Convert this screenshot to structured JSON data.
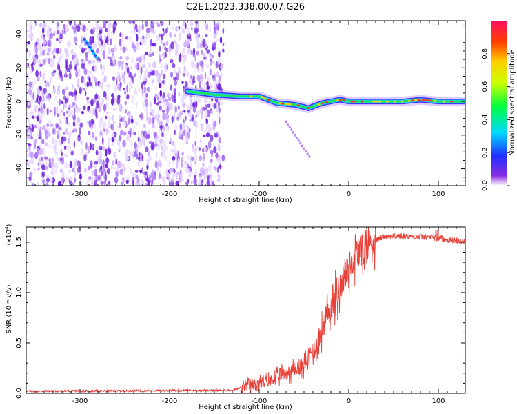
{
  "title": "C2E1.2023.338.00.07.G26",
  "chart_data": [
    {
      "type": "heatmap",
      "name": "spectrogram",
      "xlabel": "Height of straight line (km)",
      "ylabel": "Frequency (Hz)",
      "xlim": [
        -360,
        130
      ],
      "ylim": [
        -50,
        48
      ],
      "xticks": [
        -300,
        -200,
        -100,
        0,
        100
      ],
      "yticks": [
        -40,
        -20,
        0,
        20,
        40
      ],
      "colorbar": {
        "label": "Normalized spectral amplitude",
        "range": [
          0,
          1
        ],
        "ticks": [
          0.0,
          0.2,
          0.4,
          0.6,
          0.8
        ]
      },
      "noise_region_x": [
        -360,
        -140
      ],
      "ridge": [
        {
          "x": -180,
          "y": 6
        },
        {
          "x": -150,
          "y": 4
        },
        {
          "x": -120,
          "y": 3
        },
        {
          "x": -100,
          "y": 3
        },
        {
          "x": -80,
          "y": -1
        },
        {
          "x": -60,
          "y": -2
        },
        {
          "x": -45,
          "y": -4
        },
        {
          "x": -30,
          "y": -1
        },
        {
          "x": -10,
          "y": 1
        },
        {
          "x": 0,
          "y": 0
        },
        {
          "x": 20,
          "y": 0
        },
        {
          "x": 40,
          "y": 0
        },
        {
          "x": 60,
          "y": 0
        },
        {
          "x": 80,
          "y": 1
        },
        {
          "x": 100,
          "y": 0
        },
        {
          "x": 130,
          "y": 0
        }
      ]
    },
    {
      "type": "line",
      "name": "snr",
      "xlabel": "Height of straight line (km)",
      "ylabel": "SNR (10 * v/v)",
      "multiplier": "(x10",
      "multiplier_exp": "4",
      "multiplier_close": ")",
      "xlim": [
        -360,
        130
      ],
      "ylim": [
        0,
        1.65
      ],
      "xticks": [
        -300,
        -200,
        -100,
        0,
        100
      ],
      "yticks": [
        "0.0",
        "0.5",
        "1.0",
        "1.5"
      ],
      "color": "#e8413a",
      "series": [
        {
          "name": "SNR",
          "x": [
            -360,
            -130,
            -110,
            -90,
            -70,
            -50,
            -35,
            -20,
            -10,
            0,
            10,
            20,
            30,
            40,
            60,
            80,
            90,
            100,
            110,
            130
          ],
          "y": [
            0.02,
            0.03,
            0.08,
            0.12,
            0.2,
            0.28,
            0.5,
            0.85,
            1.05,
            1.25,
            1.4,
            1.46,
            1.52,
            1.56,
            1.56,
            1.55,
            1.55,
            1.55,
            1.52,
            1.51
          ]
        }
      ]
    }
  ],
  "colors": {
    "axis": "#000000",
    "line": "#e8413a"
  }
}
